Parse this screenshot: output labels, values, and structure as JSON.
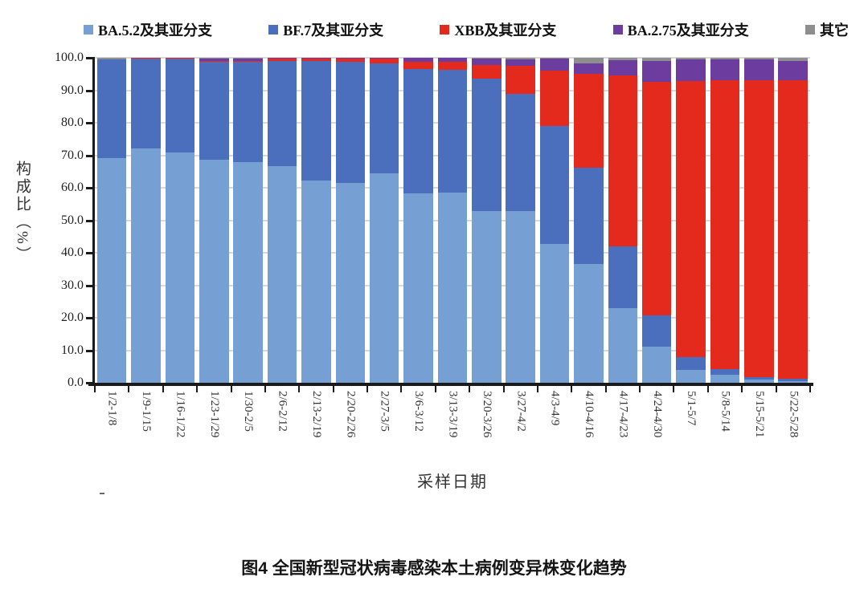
{
  "figure": {
    "caption": "图4 全国新型冠状病毒感染本土病例变异株变化趋势"
  },
  "chart_data": {
    "type": "bar",
    "stacked": true,
    "orientation": "vertical",
    "title": "",
    "xlabel": "采样日期",
    "ylabel": "构成比（%）",
    "ylim": [
      0,
      100
    ],
    "ytick_step": 10,
    "ytick_labels": [
      "100.0",
      "90.0",
      "80.0",
      "70.0",
      "60.0",
      "50.0",
      "40.0",
      "30.0",
      "20.0",
      "10.0",
      "0.0"
    ],
    "grid": true,
    "legend_position": "top",
    "categories": [
      "1/2-1/8",
      "1/9-1/15",
      "1/16-1/22",
      "1/23-1/29",
      "1/30-2/5",
      "2/6-2/12",
      "2/13-2/19",
      "2/20-2/26",
      "2/27-3/5",
      "3/6-3/12",
      "3/13-3/19",
      "3/20-3/26",
      "3/27-4/2",
      "4/3-4/9",
      "4/10-4/16",
      "4/17-4/23",
      "4/24-4/30",
      "5/1-5/7",
      "5/8-5/14",
      "5/15-5/21",
      "5/22-5/28"
    ],
    "series": [
      {
        "name": "BA.5.2及其亚分支",
        "color": "#76A0D4",
        "values": [
          69.2,
          72.2,
          70.8,
          68.6,
          67.8,
          66.6,
          62.3,
          61.5,
          64.4,
          58.3,
          58.5,
          52.9,
          52.8,
          42.8,
          36.6,
          23.0,
          11.2,
          4.0,
          2.5,
          0.9,
          0.5
        ]
      },
      {
        "name": "BF.7及其亚分支",
        "color": "#4B6EBD",
        "values": [
          30.2,
          27.6,
          29.0,
          30.2,
          31.0,
          32.4,
          36.8,
          37.2,
          33.8,
          38.2,
          37.8,
          40.6,
          36.2,
          36.1,
          29.7,
          19.0,
          9.5,
          4.0,
          1.8,
          0.9,
          0.7
        ]
      },
      {
        "name": "XBB及其亚分支",
        "color": "#E42A1D",
        "values": [
          0.1,
          0.1,
          0.1,
          0.2,
          0.2,
          0.8,
          0.7,
          1.0,
          1.5,
          2.2,
          2.4,
          4.2,
          8.6,
          17.2,
          28.7,
          52.7,
          71.8,
          84.8,
          88.8,
          91.2,
          92.0
        ]
      },
      {
        "name": "BA.2.75及其亚分支",
        "color": "#6C3D9E",
        "values": [
          0.1,
          0.1,
          0.1,
          0.8,
          0.8,
          0.1,
          0.1,
          0.2,
          0.2,
          1.2,
          1.2,
          2.0,
          1.9,
          3.6,
          3.3,
          4.6,
          6.6,
          6.7,
          6.4,
          6.5,
          5.8
        ]
      },
      {
        "name": "其它",
        "color": "#8E8E8E",
        "values": [
          0.4,
          0.0,
          0.0,
          0.2,
          0.2,
          0.1,
          0.1,
          0.1,
          0.1,
          0.1,
          0.1,
          0.3,
          0.5,
          0.3,
          1.7,
          0.7,
          0.9,
          0.5,
          0.5,
          0.5,
          1.0
        ]
      }
    ]
  }
}
